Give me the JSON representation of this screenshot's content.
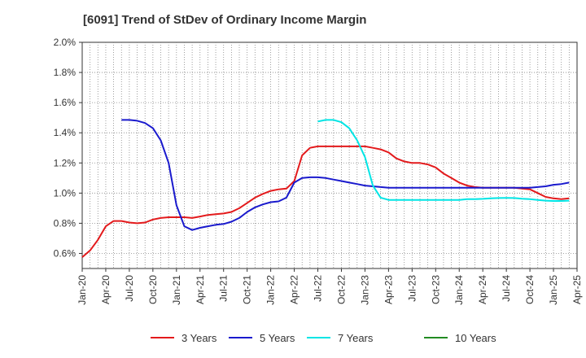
{
  "chart_data": {
    "type": "line",
    "title": "[6091]  Trend of StDev of Ordinary Income Margin",
    "xlabel": "",
    "ylabel": "",
    "x_ticks": [
      "Jan-20",
      "Apr-20",
      "Jul-20",
      "Oct-20",
      "Jan-21",
      "Apr-21",
      "Jul-21",
      "Oct-21",
      "Jan-22",
      "Apr-22",
      "Jul-22",
      "Oct-22",
      "Jan-23",
      "Apr-23",
      "Jul-23",
      "Oct-23",
      "Jan-24",
      "Apr-24",
      "Jul-24",
      "Oct-24",
      "Jan-25",
      "Apr-25"
    ],
    "y_ticks": [
      0.6,
      0.8,
      1.0,
      1.2,
      1.4,
      1.6,
      1.8,
      2.0
    ],
    "y_tick_labels": [
      "0.6%",
      "0.8%",
      "1.0%",
      "1.2%",
      "1.4%",
      "1.6%",
      "1.8%",
      "2.0%"
    ],
    "ylim": [
      0.5,
      2.0
    ],
    "xlim_months": [
      0,
      63
    ],
    "grid": true,
    "legend_position": "bottom",
    "series": [
      {
        "name": "3 Years",
        "color": "#e31a1c",
        "points": [
          [
            0,
            0.575
          ],
          [
            1,
            0.62
          ],
          [
            2,
            0.69
          ],
          [
            3,
            0.78
          ],
          [
            4,
            0.815
          ],
          [
            5,
            0.815
          ],
          [
            6,
            0.805
          ],
          [
            7,
            0.8
          ],
          [
            8,
            0.805
          ],
          [
            9,
            0.825
          ],
          [
            10,
            0.835
          ],
          [
            11,
            0.84
          ],
          [
            12,
            0.84
          ],
          [
            13,
            0.84
          ],
          [
            14,
            0.835
          ],
          [
            15,
            0.845
          ],
          [
            16,
            0.855
          ],
          [
            17,
            0.86
          ],
          [
            18,
            0.865
          ],
          [
            19,
            0.875
          ],
          [
            20,
            0.9
          ],
          [
            21,
            0.935
          ],
          [
            22,
            0.97
          ],
          [
            23,
            0.995
          ],
          [
            24,
            1.015
          ],
          [
            25,
            1.025
          ],
          [
            26,
            1.03
          ],
          [
            27,
            1.08
          ],
          [
            28,
            1.25
          ],
          [
            29,
            1.3
          ],
          [
            30,
            1.31
          ],
          [
            31,
            1.31
          ],
          [
            32,
            1.31
          ],
          [
            33,
            1.31
          ],
          [
            34,
            1.31
          ],
          [
            35,
            1.31
          ],
          [
            36,
            1.31
          ],
          [
            37,
            1.3
          ],
          [
            38,
            1.29
          ],
          [
            39,
            1.27
          ],
          [
            40,
            1.23
          ],
          [
            41,
            1.21
          ],
          [
            42,
            1.2
          ],
          [
            43,
            1.2
          ],
          [
            44,
            1.19
          ],
          [
            45,
            1.17
          ],
          [
            46,
            1.13
          ],
          [
            47,
            1.1
          ],
          [
            48,
            1.07
          ],
          [
            49,
            1.05
          ],
          [
            50,
            1.04
          ],
          [
            51,
            1.035
          ],
          [
            52,
            1.035
          ],
          [
            53,
            1.035
          ],
          [
            54,
            1.035
          ],
          [
            55,
            1.035
          ],
          [
            56,
            1.03
          ],
          [
            57,
            1.025
          ],
          [
            58,
            1.0
          ],
          [
            59,
            0.975
          ],
          [
            60,
            0.965
          ],
          [
            61,
            0.96
          ],
          [
            62,
            0.965
          ]
        ]
      },
      {
        "name": "5 Years",
        "color": "#1a1acd",
        "points": [
          [
            5,
            1.485
          ],
          [
            6,
            1.485
          ],
          [
            7,
            1.48
          ],
          [
            8,
            1.465
          ],
          [
            9,
            1.43
          ],
          [
            10,
            1.35
          ],
          [
            11,
            1.2
          ],
          [
            12,
            0.92
          ],
          [
            13,
            0.78
          ],
          [
            14,
            0.755
          ],
          [
            15,
            0.77
          ],
          [
            16,
            0.78
          ],
          [
            17,
            0.79
          ],
          [
            18,
            0.795
          ],
          [
            19,
            0.81
          ],
          [
            20,
            0.835
          ],
          [
            21,
            0.875
          ],
          [
            22,
            0.905
          ],
          [
            23,
            0.925
          ],
          [
            24,
            0.94
          ],
          [
            25,
            0.945
          ],
          [
            26,
            0.97
          ],
          [
            27,
            1.07
          ],
          [
            28,
            1.1
          ],
          [
            29,
            1.105
          ],
          [
            30,
            1.105
          ],
          [
            31,
            1.1
          ],
          [
            32,
            1.09
          ],
          [
            33,
            1.08
          ],
          [
            34,
            1.07
          ],
          [
            35,
            1.06
          ],
          [
            36,
            1.05
          ],
          [
            37,
            1.045
          ],
          [
            38,
            1.04
          ],
          [
            39,
            1.035
          ],
          [
            40,
            1.035
          ],
          [
            41,
            1.035
          ],
          [
            42,
            1.035
          ],
          [
            43,
            1.035
          ],
          [
            44,
            1.035
          ],
          [
            45,
            1.035
          ],
          [
            46,
            1.035
          ],
          [
            47,
            1.035
          ],
          [
            48,
            1.035
          ],
          [
            49,
            1.035
          ],
          [
            50,
            1.035
          ],
          [
            51,
            1.035
          ],
          [
            52,
            1.035
          ],
          [
            53,
            1.035
          ],
          [
            54,
            1.035
          ],
          [
            55,
            1.035
          ],
          [
            56,
            1.035
          ],
          [
            57,
            1.035
          ],
          [
            58,
            1.04
          ],
          [
            59,
            1.045
          ],
          [
            60,
            1.055
          ],
          [
            61,
            1.06
          ],
          [
            62,
            1.07
          ]
        ]
      },
      {
        "name": "7 Years",
        "color": "#00e5e5",
        "points": [
          [
            30,
            1.475
          ],
          [
            31,
            1.485
          ],
          [
            32,
            1.485
          ],
          [
            33,
            1.47
          ],
          [
            34,
            1.43
          ],
          [
            35,
            1.35
          ],
          [
            36,
            1.24
          ],
          [
            37,
            1.05
          ],
          [
            38,
            0.97
          ],
          [
            39,
            0.955
          ],
          [
            40,
            0.955
          ],
          [
            41,
            0.955
          ],
          [
            42,
            0.955
          ],
          [
            43,
            0.955
          ],
          [
            44,
            0.955
          ],
          [
            45,
            0.955
          ],
          [
            46,
            0.955
          ],
          [
            47,
            0.955
          ],
          [
            48,
            0.955
          ],
          [
            49,
            0.96
          ],
          [
            50,
            0.96
          ],
          [
            51,
            0.962
          ],
          [
            52,
            0.965
          ],
          [
            53,
            0.967
          ],
          [
            54,
            0.968
          ],
          [
            55,
            0.967
          ],
          [
            56,
            0.963
          ],
          [
            57,
            0.96
          ],
          [
            58,
            0.955
          ],
          [
            59,
            0.95
          ],
          [
            60,
            0.948
          ],
          [
            61,
            0.948
          ],
          [
            62,
            0.95
          ]
        ]
      },
      {
        "name": "10 Years",
        "color": "#228b22",
        "points": []
      }
    ]
  }
}
